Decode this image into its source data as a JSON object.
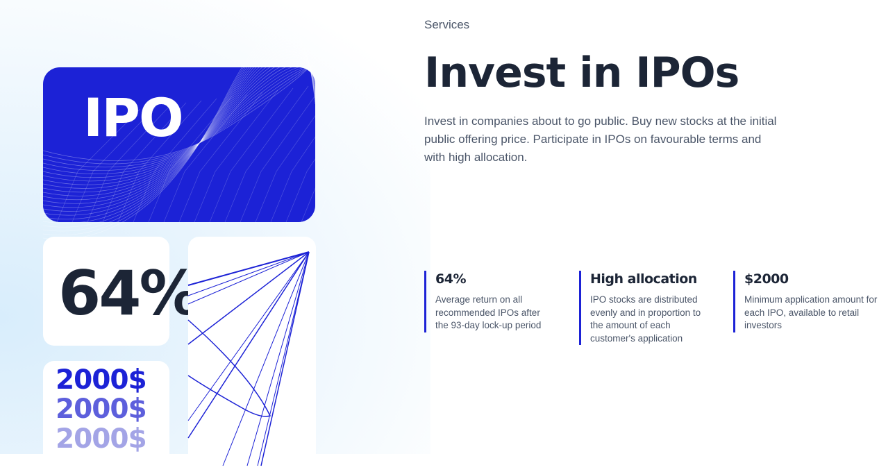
{
  "hero_images": {
    "ipo_card_text": "IPO",
    "percent_card_text": "64%",
    "money_card_lines": [
      "2000$",
      "2000$",
      "2000$"
    ],
    "colors": {
      "brand_blue": "#1c22d6",
      "dark": "#1c2536"
    }
  },
  "section": {
    "eyebrow": "Services",
    "title": "Invest in IPOs",
    "description": "Invest in companies about to go public. Buy new stocks at the initial public offering price. Participate in IPOs on favourable terms and with high allocation."
  },
  "stats": [
    {
      "title": "64%",
      "text": "Average return on all recommended IPOs after the 93-day lock-up period"
    },
    {
      "title": "High allocation",
      "text": "IPO stocks are distributed evenly and in proportion to the amount of each customer's application"
    },
    {
      "title": "$2000",
      "text": "Minimum application amount for each IPO, available to retail investors"
    }
  ]
}
